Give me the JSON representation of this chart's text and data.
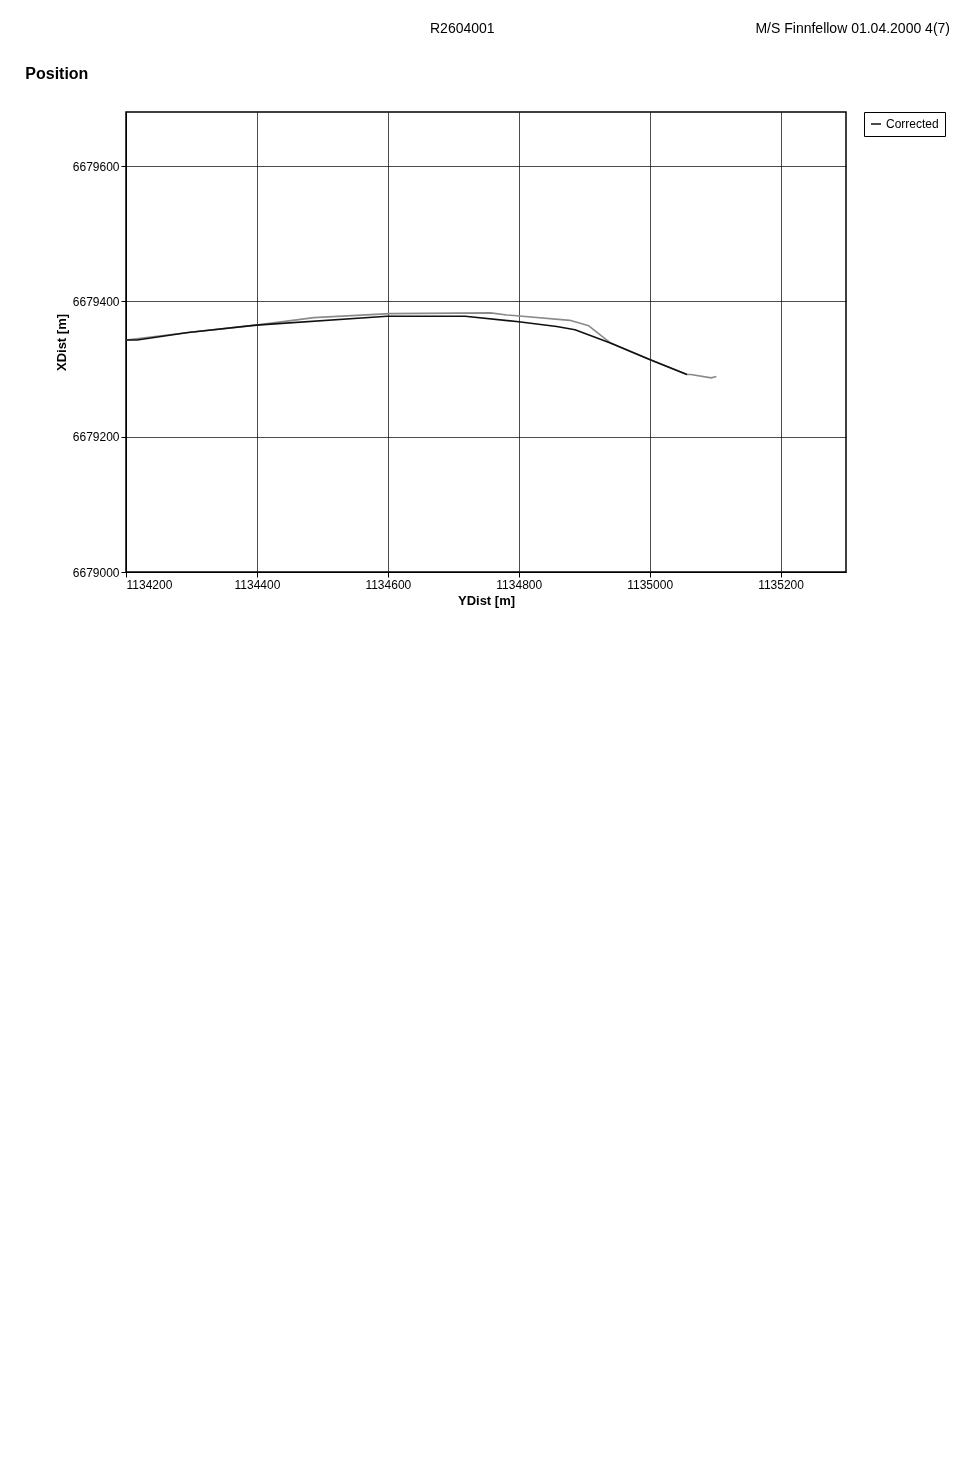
{
  "chart_data": {
    "type": "line",
    "title": "Position",
    "xlabel": "YDist [m]",
    "ylabel": "XDist [m]",
    "annotations": [
      "R2604001",
      "M/S Finnfellow 01.04.2000 4(7)"
    ],
    "series": [
      {
        "color": "#8a8a8a",
        "x": [
          1134200,
          1134295,
          1134399,
          1134487,
          1134603,
          1134757,
          1134782,
          1134878,
          1134907,
          1134941,
          1135000,
          1135057,
          1135063,
          1135094,
          1135102
        ],
        "values": [
          6679343,
          6679354,
          6679365,
          6679376,
          6679382,
          6679383,
          6679380,
          6679372,
          6679364,
          6679338,
          6679314,
          6679292,
          6679292,
          6679287,
          6679289
        ]
      },
      {
        "name": "Corrected",
        "color": "#111111",
        "x": [
          1134200,
          1134217,
          1134295,
          1134399,
          1134599,
          1134718,
          1134800,
          1134858,
          1134886,
          1134941,
          1135000,
          1135057
        ],
        "values": [
          6679343,
          6679343,
          6679354,
          6679365,
          6679378,
          6679378,
          6679370,
          6679363,
          6679358,
          6679338,
          6679314,
          6679292
        ]
      }
    ],
    "xlim": [
      1134200,
      1135300
    ],
    "xticks": [
      1134200,
      1134400,
      1134600,
      1134800,
      1135000,
      1135200
    ],
    "ylim": [
      6679000,
      6679680
    ],
    "yticks": [
      6679000,
      6679200,
      6679400,
      6679600
    ],
    "grid": true,
    "legend": "right",
    "line_style": "solid",
    "marker": "none"
  }
}
